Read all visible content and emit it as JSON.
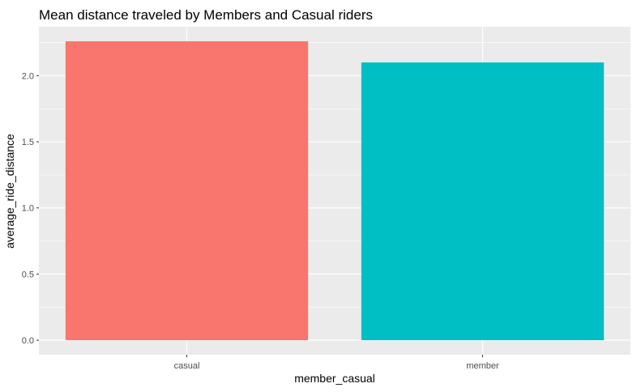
{
  "chart_data": {
    "type": "bar",
    "title": "Mean distance traveled by Members and Casual riders",
    "xlabel": "member_casual",
    "ylabel": "average_ride_distance",
    "categories": [
      "casual",
      "member"
    ],
    "values": [
      2.26,
      2.1
    ],
    "colors": [
      "#F8766D",
      "#00BFC4"
    ],
    "ylim": [
      -0.11,
      2.37
    ],
    "yticks": [
      0.0,
      0.5,
      1.0,
      1.5,
      2.0
    ],
    "ytick_labels": [
      "0.0",
      "0.5",
      "1.0",
      "1.5",
      "2.0"
    ],
    "grid": true,
    "legend": "none",
    "panel_background": "#EBEBEB",
    "grid_color": "#FFFFFF"
  }
}
